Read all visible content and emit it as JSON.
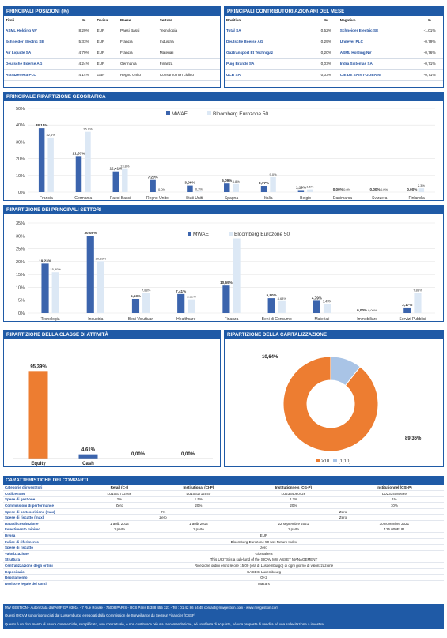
{
  "top_positions": {
    "title": "PRINCIPALI POSIZIONI (%)",
    "headers": [
      "Titoli",
      "%",
      "Divisa",
      "Paese",
      "Settore"
    ],
    "rows": [
      [
        "ASML Holding NV",
        "8,29%",
        "EUR",
        "Paesi Bassi",
        "Tecnologia"
      ],
      [
        "Schneider Electric SE",
        "5,33%",
        "EUR",
        "Francia",
        "Industria"
      ],
      [
        "Air Liquide SA",
        "4,79%",
        "EUR",
        "Francia",
        "Materiali"
      ],
      [
        "Deutsche Boerse AG",
        "4,24%",
        "EUR",
        "Germania",
        "Finanza"
      ],
      [
        "AstraZeneca PLC",
        "4,14%",
        "GBP",
        "Regno Unito",
        "Consumo non ciclico"
      ]
    ]
  },
  "contributors": {
    "title": "PRINCIPALI CONTRIBUTORI AZIONARI  DEL MESE",
    "headers": [
      "Positivo",
      "%",
      "Negativo",
      "%"
    ],
    "rows": [
      [
        "Total SA",
        "0,52%",
        "Schneider Electric SE",
        "-1,01%"
      ],
      [
        "Deutsche Boerse AG",
        "0,29%",
        "Unilever PLC",
        "-0,79%"
      ],
      [
        "Gaztransport Et Technigaz",
        "0,20%",
        "ASML Holding NV",
        "-0,76%"
      ],
      [
        "Puig Brands SA",
        "0,03%",
        "Indra Sistemas SA",
        "-0,71%"
      ],
      [
        "UCB SA",
        "0,03%",
        "CIE DE SAINT-GOBAIN",
        "-0,71%"
      ]
    ]
  },
  "colors": {
    "mwae": "#3b64ad",
    "bench": "#dce8f5",
    "equity": "#ed7d31",
    "cap_light": "#a9c4e6"
  },
  "geo_title": "PRINCIPALE RIPARTIZIONE GEOGRAFICA",
  "sector_title": "RIPARTIZIONE DEI PRINCIPALI SETTORI",
  "asset_title": "RIPARTIZIONE DELLA CLASSE DI ATTIVITÀ",
  "cap_title": "RIPARTIZIONE DELLA CAPITALIZZAZIONE",
  "chart_data": [
    {
      "type": "bar",
      "categories": [
        "Francia",
        "Germania",
        "Paesi Bassi",
        "Regno Unito",
        "Stati Uniti",
        "Spagna",
        "Italia",
        "Belgio",
        "Danimarca",
        "Svizzera",
        "Finlandia"
      ],
      "series": [
        {
          "name": "MWAE",
          "values": [
            38.15,
            21.53,
            12.41,
            7.2,
            3.96,
            5.09,
            3.77,
            1.19,
            0,
            0,
            0
          ],
          "labels": [
            "38,15%",
            "21,53%",
            "12,41%",
            "7,20%",
            "3,96%",
            "5,09%",
            "3,77%",
            "1,19%",
            "0,00%",
            "0,00%",
            "0,00%"
          ]
        },
        {
          "name": "Bloomberg Eurozone 50",
          "values": [
            32.6,
            36.0,
            13.8,
            0,
            0.3,
            4.8,
            9.0,
            1.6,
            0,
            0,
            2.3
          ],
          "labels": [
            "32,6%",
            "36,0%",
            "13,8%",
            "0,0%",
            "0,3%",
            "4,8%",
            "9,0%",
            "1,6%",
            "0,0%",
            "0,0%",
            "2,3%"
          ]
        }
      ],
      "ylim": [
        0,
        50
      ],
      "yticks": [
        "0%",
        "10%",
        "20%",
        "30%",
        "40%",
        "50%"
      ]
    },
    {
      "type": "bar",
      "categories": [
        "Tecnologia",
        "Industria",
        "Beni Voluttuari",
        "Healthcare",
        "Finanza",
        "Beni di Consumo",
        "Materiali",
        "Immobiliare",
        "Servizi Pubblici"
      ],
      "series": [
        {
          "name": "MWAE",
          "values": [
            19.23,
            30.08,
            5.53,
            7.41,
            10.69,
            5.8,
            4.79,
            0,
            2.17
          ],
          "labels": [
            "19,23%",
            "30,08%",
            "5,53%",
            "7,41%",
            "10,69%",
            "5,80%",
            "4,79%",
            "0,00%",
            "2,17%"
          ]
        },
        {
          "name": "Bloomberg Eurozone 50",
          "values": [
            15.9,
            20.18,
            7.88,
            5.31,
            29.0,
            4.68,
            3.49,
            0,
            7.88
          ],
          "labels": [
            "15,90%",
            "20,18%",
            "7,88%",
            "5,31%",
            "",
            "4,68%",
            "3,49%",
            "0,00%",
            "7,88%"
          ]
        }
      ],
      "ylim": [
        0,
        35
      ],
      "yticks": [
        "0%",
        "5%",
        "10%",
        "15%",
        "20%",
        "25%",
        "30%",
        "35%"
      ]
    },
    {
      "type": "bar",
      "categories": [
        "Equity",
        "Cash",
        "",
        ""
      ],
      "values": [
        95.39,
        4.61,
        0,
        0
      ],
      "labels": [
        "95,39%",
        "4,61%",
        "0,00%",
        "0,00%"
      ]
    },
    {
      "type": "pie",
      "labels": [
        ">10",
        "[1;10]"
      ],
      "values": [
        89.36,
        10.64
      ],
      "value_labels": [
        "89,36%",
        "10,64%"
      ]
    }
  ],
  "caratteristiche": {
    "title": "CARATTERISTICHE DEI COMPARTI",
    "headers": [
      "Retail (C-I)",
      "Institutional (CI-P)",
      "Institutionnels (CG-P)",
      "Institutionnel (CSI-P)"
    ],
    "rows": [
      {
        "label": "Categorie d'investitori",
        "cells": [
          "Retail (C-I)",
          "Institutional (CI-P)",
          "Institutionnels (CG-P)",
          "Institutionnel (CSI-P)"
        ]
      },
      {
        "label": "Codice ISIN",
        "cells": [
          "LU1061712466",
          "LU1061712540",
          "LU2334080426",
          "LU2334080699"
        ]
      },
      {
        "label": "Spese di gestione",
        "cells": [
          "2%",
          "1.5%",
          "2.2%",
          "1%"
        ]
      },
      {
        "label": "Commissioni di performance",
        "cells": [
          "Zero",
          "20%",
          "20%",
          "10%"
        ]
      },
      {
        "label": "Spese di sottoscrizione (max)",
        "merged2": [
          "2%",
          "Zero"
        ]
      },
      {
        "label": "Spese di riscatto (max)",
        "merged2": [
          "Zero",
          "Zero"
        ]
      },
      {
        "label": "Data di costituzione",
        "cells": [
          "1 août 2014",
          "1 août 2014",
          "22 septembre 2021",
          "30 novembre 2021"
        ]
      },
      {
        "label": "Investimento minimo",
        "cells": [
          "1 parte",
          "1 parte",
          "1 parte",
          "125 000EUR"
        ]
      },
      {
        "label": "Divisa",
        "full": "EUR"
      },
      {
        "label": "Indice di riferimento",
        "full": "Bloomberg Eurozone 50 Net Return Index"
      },
      {
        "label": "Spese di riscatto",
        "full": "zero"
      },
      {
        "label": "Valorizzazione",
        "full": "Giornaliera"
      },
      {
        "label": "Struttura",
        "full": "This UCITS is a sub-fund of the SICAV MW ASSET MANAGEMENT"
      },
      {
        "label": "Centralizzazione degli ordini",
        "full": "Ricezione ordini entro le ore 15.00 (ora di Lussemburgo) di ogni giorno di valorizzazione"
      },
      {
        "label": "Depositario",
        "full": "CACEIS Luxembourg"
      },
      {
        "label": "Regolamento",
        "full": "G+2"
      },
      {
        "label": "Revisore legale dei conti",
        "full": "Mazars"
      }
    ]
  },
  "footer": [
    "MW GESTION - Autorizzata dall'AMF GP 03014 - 7 Rue Royale - 75008 PARIS - RCS Paris B 388 455 321 - Tel : 01 42 86 54 45 contact@mwgestion.com - www.mwgestion.com",
    "Questi OICVM sono riconosciuti dal Lussemburgo e regolati dalla Commission de Surveillance du Secteur Financier (CSSF)",
    "Questo è un documento di natura commerciale, semplificato, non contrattuale, e non costituisce né una raccomandazione, né un'offerta di acquisto, né una proposta di vendita né una sollecitazione a investire"
  ]
}
